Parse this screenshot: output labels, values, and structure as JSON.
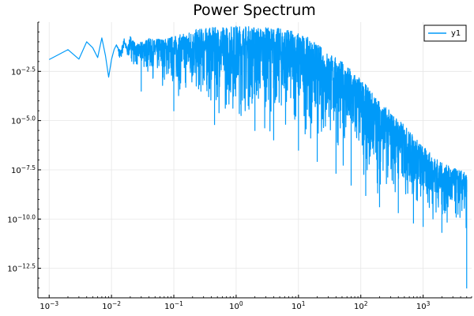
{
  "chart_data": {
    "type": "line",
    "title": "Power Spectrum",
    "xlabel": "",
    "ylabel": "",
    "x_scale": "log10",
    "y_scale": "log10",
    "xlim": [
      0.00066,
      6000
    ],
    "ylim": [
      1e-14,
      1.0
    ],
    "x_ticks": [
      {
        "value": 0.001,
        "base": "10",
        "exp": "−3"
      },
      {
        "value": 0.01,
        "base": "10",
        "exp": "−2"
      },
      {
        "value": 0.1,
        "base": "10",
        "exp": "−1"
      },
      {
        "value": 1,
        "base": "10",
        "exp": "0"
      },
      {
        "value": 10,
        "base": "10",
        "exp": "1"
      },
      {
        "value": 100,
        "base": "10",
        "exp": "2"
      },
      {
        "value": 1000,
        "base": "10",
        "exp": "3"
      }
    ],
    "y_ticks": [
      {
        "value": 0.00316,
        "base": "10",
        "exp": "−2.5"
      },
      {
        "value": 1e-05,
        "base": "10",
        "exp": "−5.0"
      },
      {
        "value": 3.16e-08,
        "base": "10",
        "exp": "−7.5"
      },
      {
        "value": 1e-10,
        "base": "10",
        "exp": "−10.0"
      },
      {
        "value": 3.16e-13,
        "base": "10",
        "exp": "−12.5"
      }
    ],
    "grid": true,
    "legend_position": "top-right",
    "series": [
      {
        "name": "y1",
        "color": "#009af9",
        "x": [
          0.001,
          0.002,
          0.003,
          0.004,
          0.005,
          0.006,
          0.007,
          0.008,
          0.009,
          0.01,
          0.011,
          0.012,
          0.014,
          0.016,
          0.018,
          0.02,
          0.025,
          0.03,
          0.035,
          0.04,
          0.05,
          0.06,
          0.07,
          0.08,
          0.1,
          0.12,
          0.15,
          0.2,
          0.3,
          0.5,
          0.7,
          1,
          1.5,
          2,
          3,
          5,
          7,
          10,
          15,
          20,
          30,
          50,
          70,
          100,
          150,
          200,
          300,
          500,
          700,
          1000,
          1500,
          2000,
          3000,
          4000,
          5000
        ],
        "upper": [
          0.0126,
          0.04,
          0.0132,
          0.1,
          0.05,
          0.0158,
          0.158,
          0.02,
          0.0016,
          0.0126,
          0.04,
          0.07,
          0.035,
          0.15,
          0.05,
          0.2,
          0.07,
          0.1,
          0.12,
          0.15,
          0.12,
          0.17,
          0.13,
          0.18,
          0.2,
          0.22,
          0.28,
          0.4,
          0.5,
          0.55,
          0.6,
          0.7,
          0.65,
          0.6,
          0.55,
          0.5,
          0.4,
          0.3,
          0.15,
          0.08,
          0.03,
          0.01,
          0.004,
          0.0013,
          0.0003,
          0.0001,
          3e-05,
          6e-06,
          1.8e-06,
          5e-07,
          1.5e-07,
          7e-08,
          4e-08,
          3e-08,
          2e-08
        ],
        "lower": [
          0.0126,
          0.04,
          0.0132,
          0.1,
          0.05,
          0.0158,
          0.158,
          0.02,
          0.0016,
          0.0126,
          0.04,
          0.07,
          0.0035,
          0.05,
          0.006,
          0.01,
          0.003,
          0.0013,
          0.002,
          0.001,
          0.0005,
          0.0004,
          0.0003,
          0.00025,
          0.0001,
          8e-05,
          5e-05,
          3e-05,
          2e-05,
          1e-05,
          6e-06,
          5e-06,
          4e-06,
          3e-06,
          2e-06,
          1.5e-06,
          1e-06,
          7e-07,
          4e-07,
          2e-07,
          8e-08,
          3e-08,
          1.2e-08,
          5e-09,
          2e-09,
          9e-10,
          4e-10,
          2e-10,
          1e-10,
          5e-11,
          3e-11,
          2e-11,
          1e-11,
          1e-11,
          1e-11
        ],
        "dips": [
          {
            "x": 0.03,
            "y": 0.0003
          },
          {
            "x": 0.1,
            "y": 3e-05
          },
          {
            "x": 0.45,
            "y": 6e-06
          },
          {
            "x": 2,
            "y": 3e-06
          },
          {
            "x": 4,
            "y": 1e-06
          },
          {
            "x": 10,
            "y": 3e-07
          },
          {
            "x": 20,
            "y": 8e-08
          },
          {
            "x": 40,
            "y": 2e-08
          },
          {
            "x": 70,
            "y": 5e-09
          },
          {
            "x": 120,
            "y": 1.5e-09
          },
          {
            "x": 200,
            "y": 4e-10
          },
          {
            "x": 400,
            "y": 2e-10
          },
          {
            "x": 700,
            "y": 6e-11
          },
          {
            "x": 1000,
            "y": 4e-11
          },
          {
            "x": 2000,
            "y": 2e-11
          },
          {
            "x": 5000,
            "y": 3e-14
          }
        ]
      }
    ]
  }
}
